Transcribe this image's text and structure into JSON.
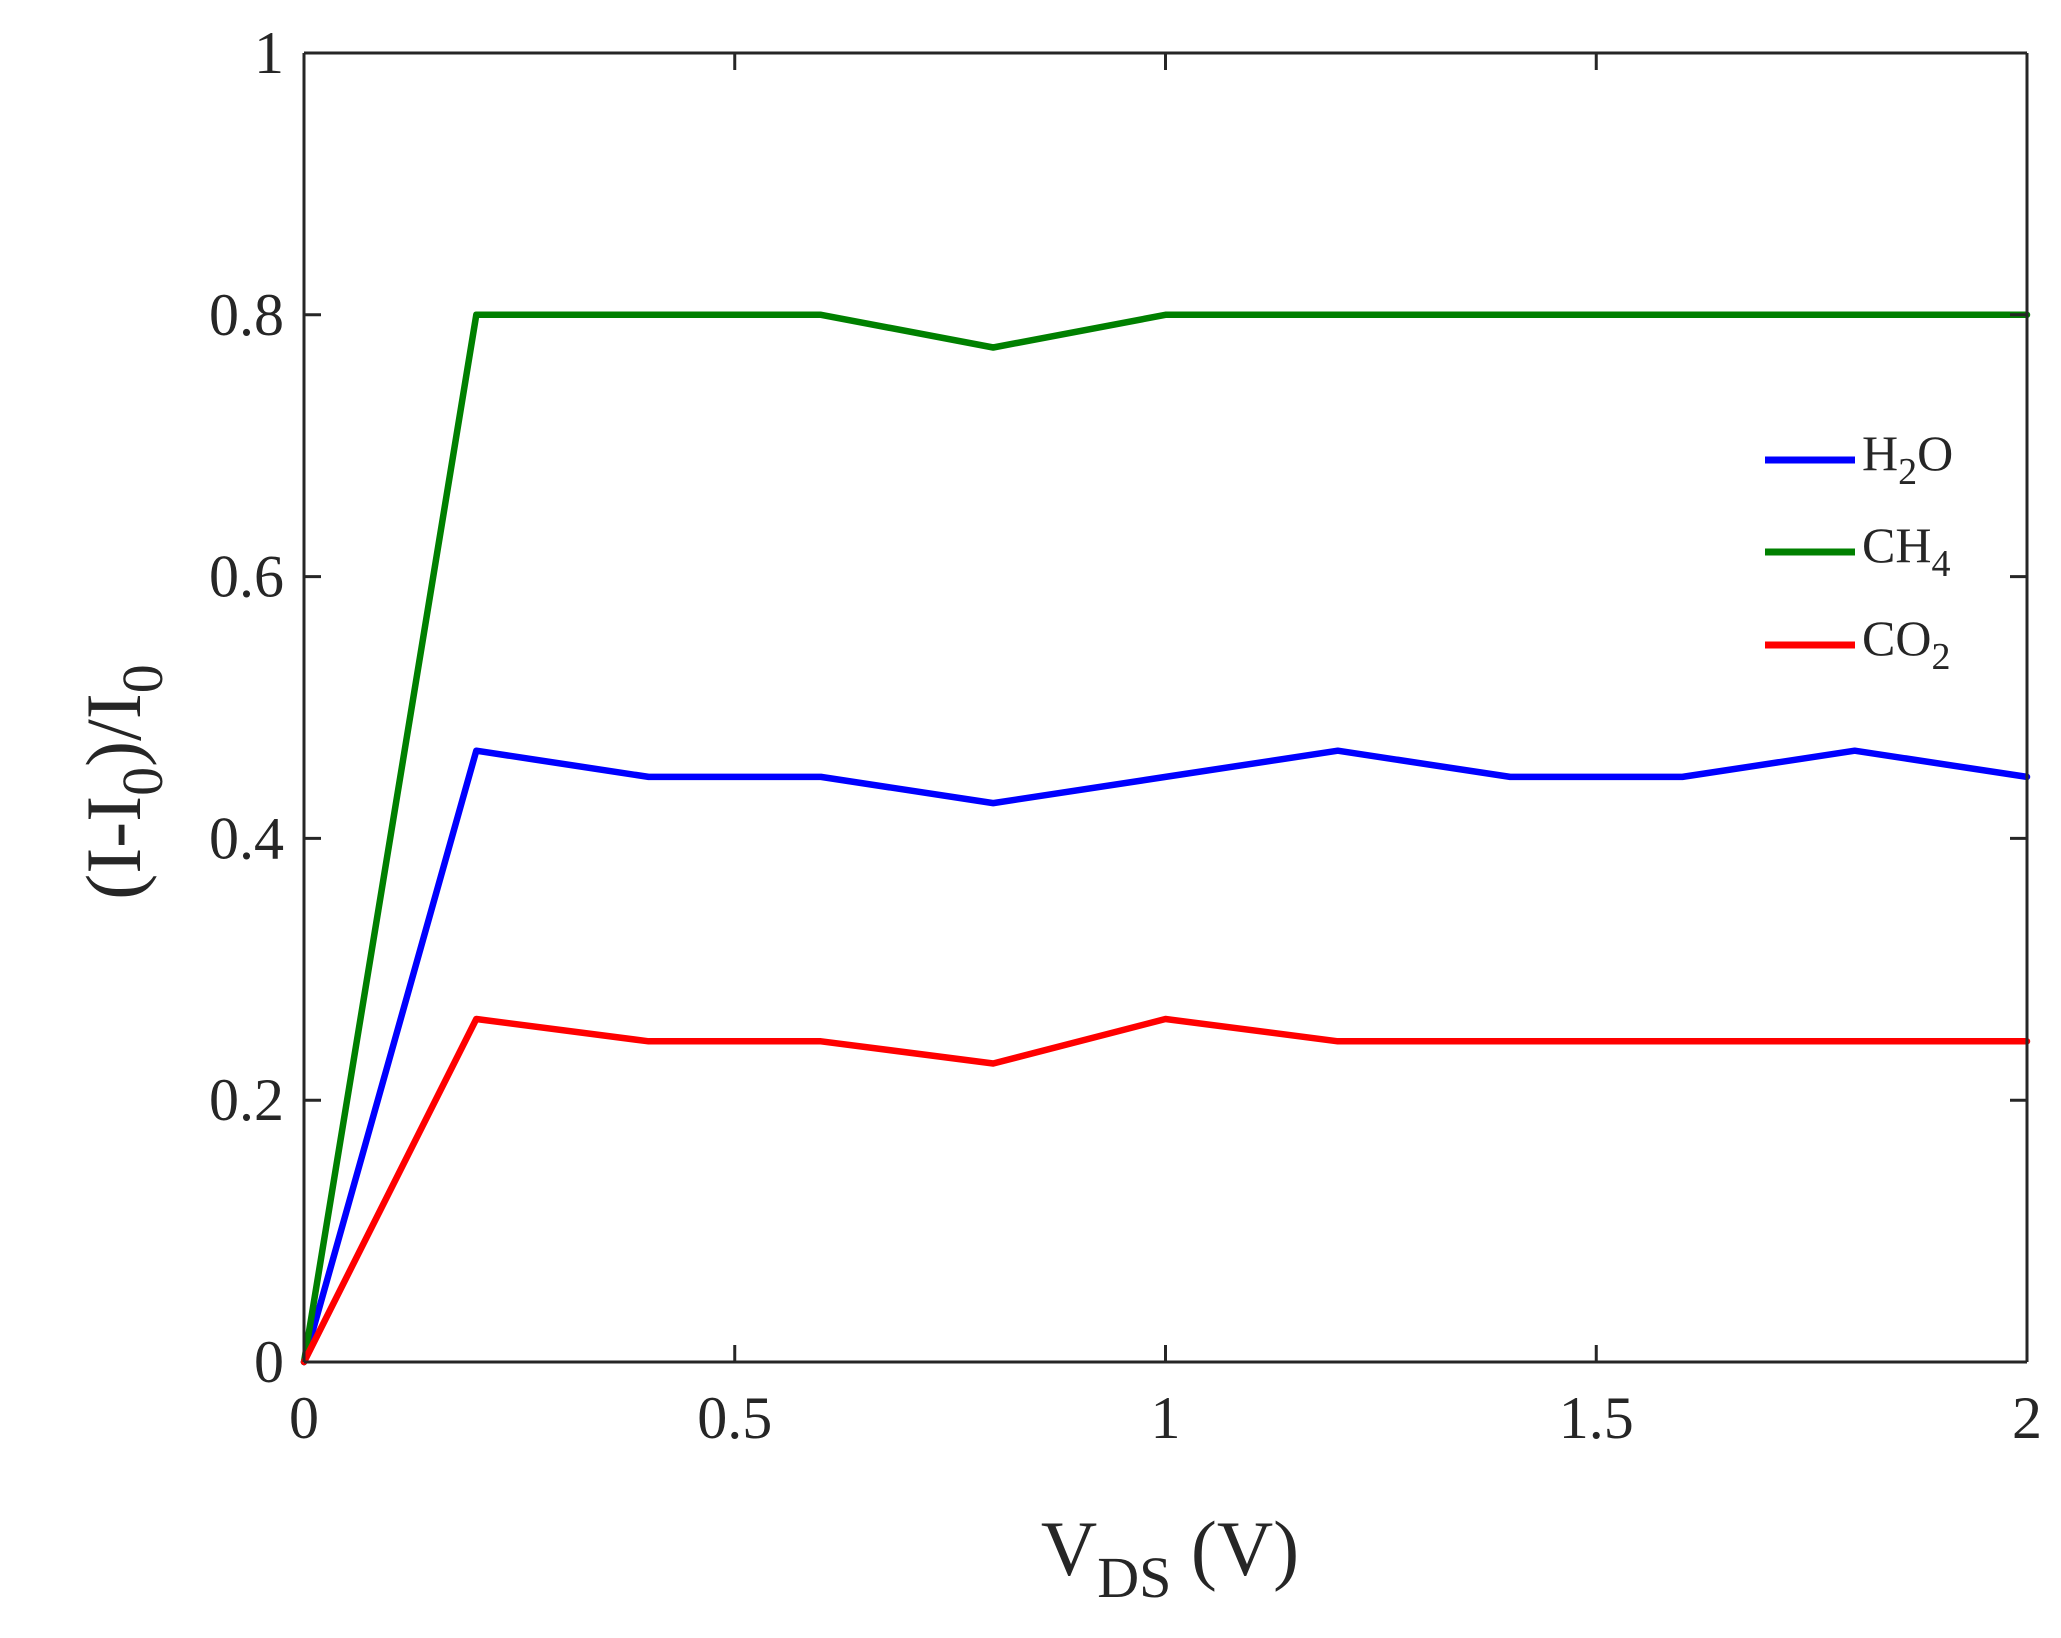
{
  "chart_data": {
    "type": "line",
    "title": "",
    "xlabel": {
      "main": "V",
      "sub": "DS",
      "unit": " (V)"
    },
    "ylabel": {
      "p1": "(I-I",
      "s1": "0",
      "p2": ")/I",
      "s2": "0"
    },
    "xlim": [
      0,
      2
    ],
    "ylim": [
      0,
      1
    ],
    "xticks": [
      "0",
      "0.5",
      "1",
      "1.5",
      "2"
    ],
    "yticks": [
      "0",
      "0.2",
      "0.4",
      "0.6",
      "0.8",
      "1"
    ],
    "grid": false,
    "legend_position": "right",
    "x": [
      0,
      0.2,
      0.4,
      0.6,
      0.8,
      1.0,
      1.2,
      1.4,
      1.6,
      1.8,
      2.0
    ],
    "series": [
      {
        "key": "h2o",
        "name": "H2O",
        "base": "H",
        "sub": "2",
        "tail": "O",
        "color": "#0000ff",
        "values": [
          0,
          0.467,
          0.447,
          0.447,
          0.427,
          0.447,
          0.467,
          0.447,
          0.447,
          0.467,
          0.447
        ]
      },
      {
        "key": "ch4",
        "name": "CH4",
        "base": "CH",
        "sub": "4",
        "tail": "",
        "color": "#008000",
        "values": [
          0,
          0.8,
          0.8,
          0.8,
          0.775,
          0.8,
          0.8,
          0.8,
          0.8,
          0.8,
          0.8
        ]
      },
      {
        "key": "co2",
        "name": "CO2",
        "base": "CO",
        "sub": "2",
        "tail": "",
        "color": "#ff0000",
        "values": [
          0,
          0.262,
          0.245,
          0.245,
          0.228,
          0.262,
          0.245,
          0.245,
          0.245,
          0.245,
          0.245
        ]
      }
    ]
  }
}
